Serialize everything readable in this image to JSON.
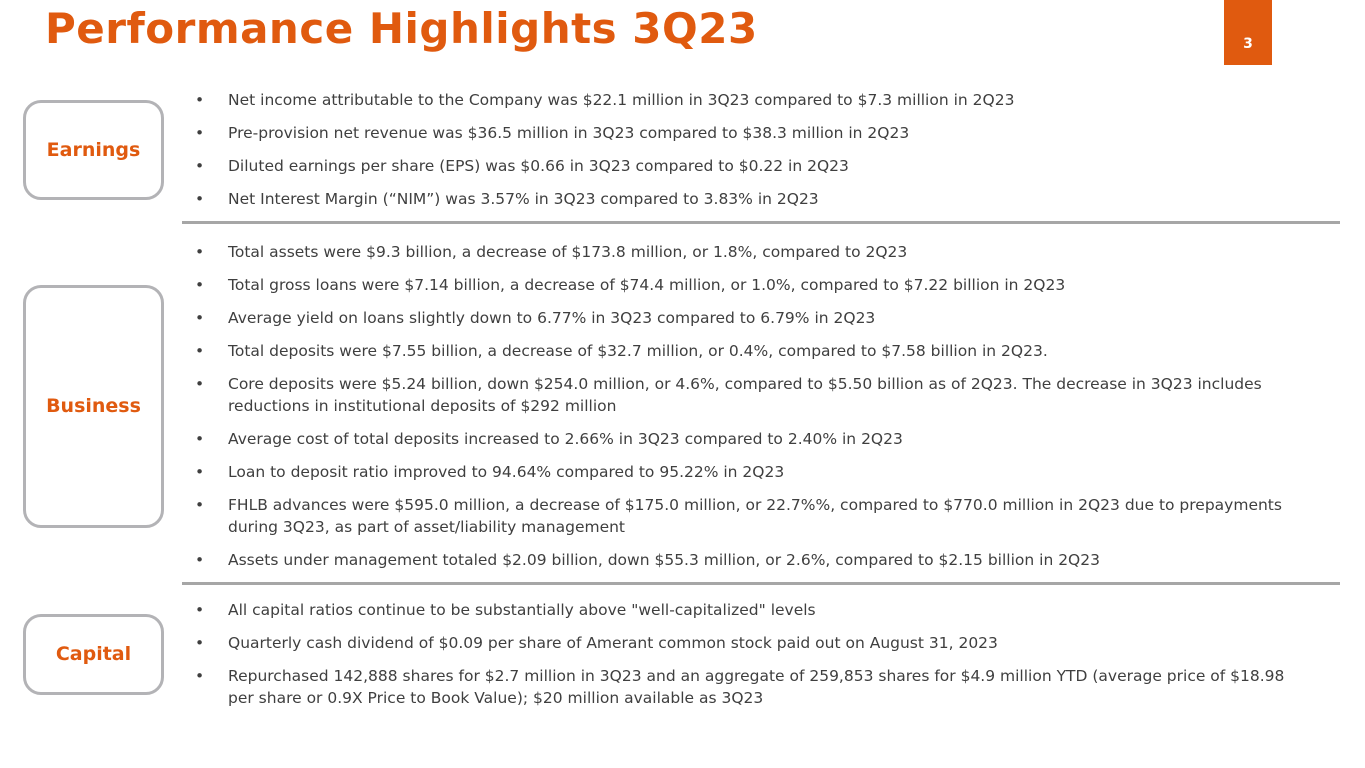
{
  "slide": {
    "title": "Performance Highlights 3Q23",
    "page_number": "3",
    "accent_color": "#E05A0F",
    "text_color": "#3F3F3F",
    "sections": [
      {
        "label": "Earnings",
        "bullets": [
          "Net income attributable to the Company was $22.1 million in 3Q23 compared to $7.3 million in 2Q23",
          "Pre-provision net revenue was $36.5 million in 3Q23 compared to $38.3 million in 2Q23",
          "Diluted earnings per share (EPS) was $0.66 in 3Q23 compared to $0.22 in 2Q23",
          "Net Interest Margin (“NIM”) was 3.57% in 3Q23 compared to 3.83% in 2Q23"
        ]
      },
      {
        "label": "Business",
        "bullets": [
          "Total assets were $9.3 billion, a decrease of $173.8 million, or 1.8%, compared to 2Q23",
          "Total gross loans were $7.14 billion, a decrease of $74.4 million, or 1.0%, compared to $7.22 billion in 2Q23",
          "Average yield on loans slightly down to 6.77% in 3Q23 compared to 6.79% in 2Q23",
          "Total deposits were $7.55 billion, a decrease of $32.7 million, or 0.4%, compared to $7.58 billion in 2Q23.",
          "Core deposits were $5.24 billion, down $254.0 million, or 4.6%, compared to $5.50 billion as of 2Q23. The decrease in 3Q23 includes reductions in institutional deposits of $292  million",
          "Average cost of total deposits increased to 2.66% in 3Q23 compared to 2.40% in 2Q23",
          "Loan to deposit ratio improved to 94.64% compared to 95.22% in 2Q23",
          "FHLB advances were $595.0 million, a decrease of $175.0 million, or 22.7%%, compared to $770.0 million in 2Q23 due to prepayments during 3Q23, as part of asset/liability management",
          "Assets under management totaled $2.09 billion, down $55.3 million, or 2.6%, compared to $2.15 billion in 2Q23"
        ]
      },
      {
        "label": "Capital",
        "bullets": [
          "All capital ratios continue to be substantially above \"well-capitalized\" levels",
          "Quarterly cash dividend of $0.09 per share of Amerant common stock paid out on August 31, 2023",
          "Repurchased 142,888 shares for $2.7 million in 3Q23 and an aggregate of 259,853 shares for $4.9 million YTD (average price of $18.98 per share or 0.9X Price to Book Value); $20 million available as 3Q23"
        ]
      }
    ]
  }
}
